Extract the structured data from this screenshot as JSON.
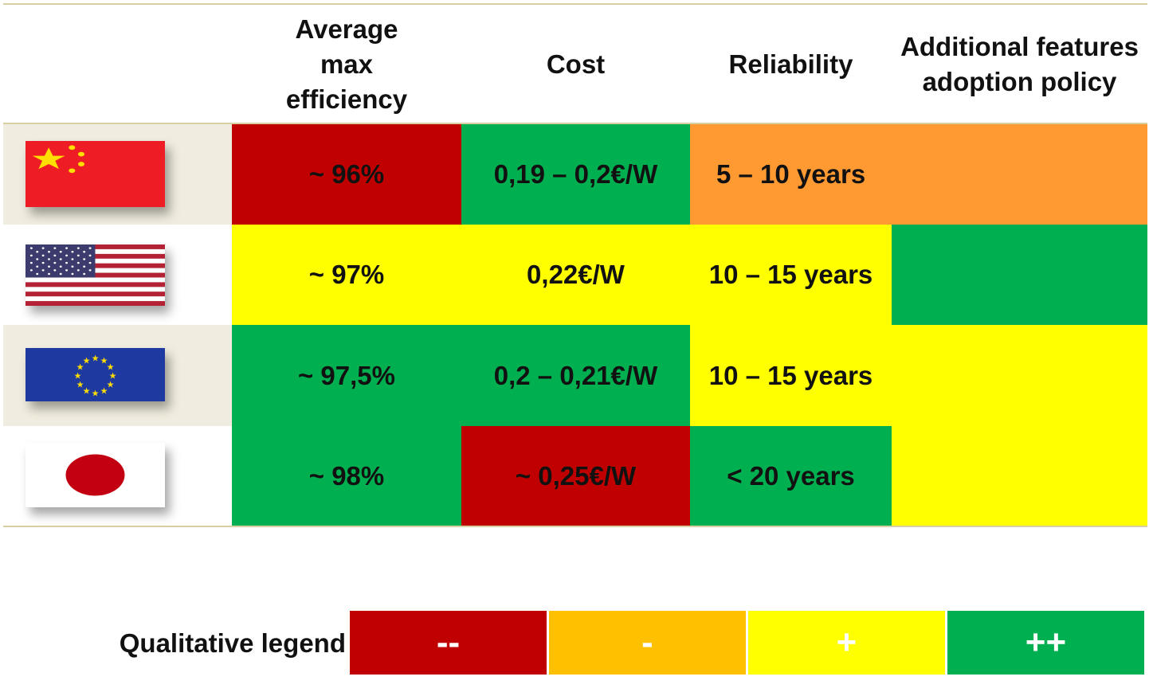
{
  "colors": {
    "red": "#c00000",
    "orange": "#ff9a33",
    "amber": "#ffc000",
    "yellow": "#ffff00",
    "green": "#00b050",
    "flag_band_tan": "#f0ecdf",
    "rule": "#d8cfa3"
  },
  "headers": {
    "efficiency": "Average max efficiency",
    "cost": "Cost",
    "reliability": "Reliability",
    "additional": "Additional features adoption policy"
  },
  "rows": [
    {
      "flag": "china-flag-icon",
      "efficiency": "~ 96%",
      "cost": "0,19 – 0,2€/W",
      "reliability": "5 – 10 years"
    },
    {
      "flag": "usa-flag-icon",
      "efficiency": "~ 97%",
      "cost": "0,22€/W",
      "reliability": "10 – 15 years"
    },
    {
      "flag": "eu-flag-icon",
      "efficiency": "~ 97,5%",
      "cost": "0,2 – 0,21€/W",
      "reliability": "10 – 15 years"
    },
    {
      "flag": "japan-flag-icon",
      "efficiency": "~ 98%",
      "cost": "~ 0,25€/W",
      "reliability": "< 20 years"
    }
  ],
  "legend": {
    "label": "Qualitative legend",
    "items": [
      "--",
      "-",
      "+",
      "++"
    ]
  }
}
